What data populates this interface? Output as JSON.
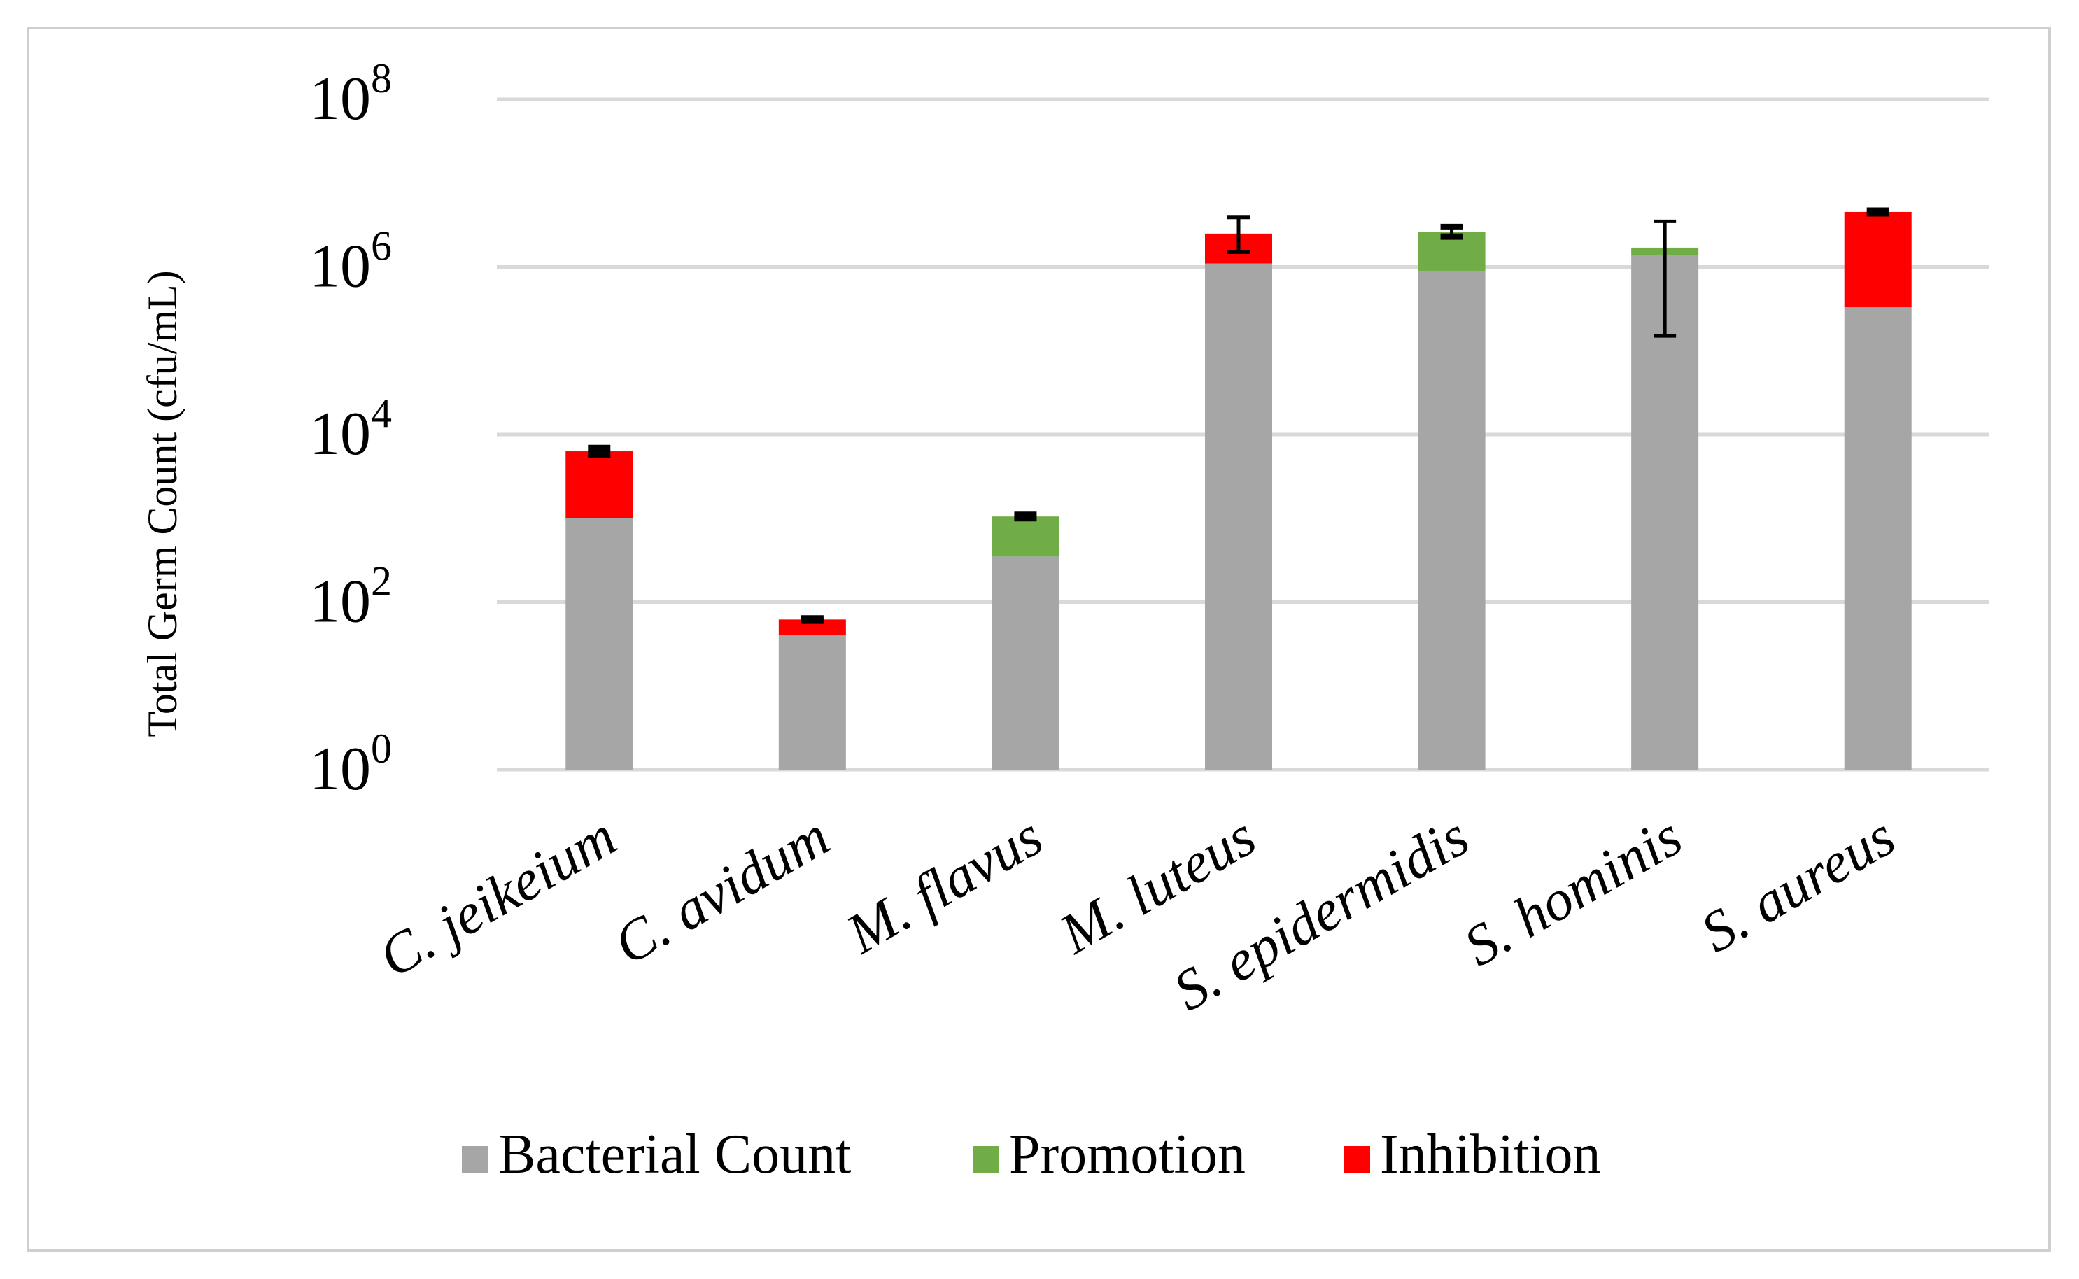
{
  "chart_data": {
    "type": "bar",
    "stacked": true,
    "yscale": "log",
    "title": "",
    "xlabel": "",
    "ylabel": "Total Germ Count (cfu/mL)",
    "ylim": [
      1,
      100000000
    ],
    "yticks": [
      {
        "base": "10",
        "exp": "0",
        "value": 1
      },
      {
        "base": "10",
        "exp": "2",
        "value": 100
      },
      {
        "base": "10",
        "exp": "4",
        "value": 10000
      },
      {
        "base": "10",
        "exp": "6",
        "value": 1000000
      },
      {
        "base": "10",
        "exp": "8",
        "value": 100000000
      }
    ],
    "grid": true,
    "legend_position": "bottom",
    "categories": [
      "C. jeikeium",
      "C. avidum",
      "M. flavus",
      "M. luteus",
      "S. epidermidis",
      "S. hominis",
      "S. aureus"
    ],
    "series": [
      {
        "name": "Bacterial Count",
        "color": "#a6a6a6",
        "values": [
          1000,
          40,
          350,
          1100000,
          900000,
          1400000,
          330000
        ]
      },
      {
        "name": "Promotion",
        "color": "#70ad47",
        "values": [
          0,
          0,
          700,
          0,
          1700000,
          300000,
          0
        ]
      },
      {
        "name": "Inhibition",
        "color": "#ff0000",
        "values": [
          5300,
          22,
          0,
          1400000,
          0,
          0,
          4200000
        ]
      }
    ],
    "totals": [
      6300,
      62,
      1050,
      2500000,
      2600000,
      1700000,
      4530000
    ],
    "error_bars": [
      {
        "low": 5800,
        "high": 6900
      },
      {
        "low": 60,
        "high": 64
      },
      {
        "low": 1000,
        "high": 1100
      },
      {
        "low": 1500000,
        "high": 3900000
      },
      {
        "low": 2300000,
        "high": 3000000
      },
      {
        "low": 150000,
        "high": 3500000
      },
      {
        "low": 4350000,
        "high": 4700000
      }
    ]
  }
}
